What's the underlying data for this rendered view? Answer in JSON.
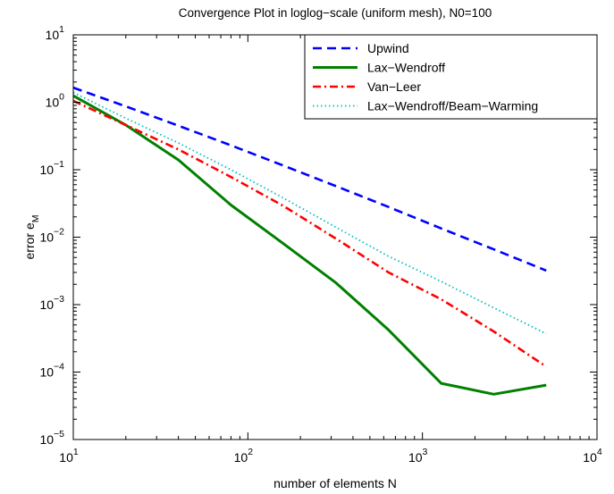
{
  "chart_data": {
    "type": "line",
    "title": "Convergence Plot in loglog−scale (uniform mesh), N0=100",
    "xlabel": "number of elements N",
    "ylabel_main": "error e",
    "ylabel_sub": "M",
    "xscale": "log",
    "yscale": "log",
    "xlim": [
      10,
      10000
    ],
    "ylim": [
      1e-05,
      10
    ],
    "grid": false,
    "legend_position": "top-right",
    "x_ticks": [
      {
        "value": 10,
        "base": "10",
        "exp": "1"
      },
      {
        "value": 100,
        "base": "10",
        "exp": "2"
      },
      {
        "value": 1000,
        "base": "10",
        "exp": "3"
      },
      {
        "value": 10000,
        "base": "10",
        "exp": "4"
      }
    ],
    "y_ticks": [
      {
        "value": 1e-05,
        "base": "10",
        "exp": "−5"
      },
      {
        "value": 0.0001,
        "base": "10",
        "exp": "−4"
      },
      {
        "value": 0.001,
        "base": "10",
        "exp": "−3"
      },
      {
        "value": 0.01,
        "base": "10",
        "exp": "−2"
      },
      {
        "value": 0.1,
        "base": "10",
        "exp": "−1"
      },
      {
        "value": 1,
        "base": "10",
        "exp": "0"
      },
      {
        "value": 10,
        "base": "10",
        "exp": "1"
      }
    ],
    "series": [
      {
        "name": "Upwind",
        "color": "#0000ff",
        "style": "dashed",
        "x": [
          10,
          20,
          40,
          80,
          160,
          320,
          640,
          1280,
          2560,
          5120
        ],
        "y": [
          1.65,
          0.87,
          0.45,
          0.23,
          0.115,
          0.057,
          0.028,
          0.0135,
          0.0066,
          0.0032
        ]
      },
      {
        "name": "Lax−Wendroff",
        "color": "#008000",
        "style": "solid",
        "x": [
          10,
          20,
          40,
          80,
          160,
          320,
          640,
          1280,
          2560,
          5120
        ],
        "y": [
          1.25,
          0.46,
          0.14,
          0.03,
          0.008,
          0.0021,
          0.00042,
          6.8e-05,
          4.7e-05,
          6.4e-05
        ]
      },
      {
        "name": "Van−Leer",
        "color": "#ff0000",
        "style": "dashdot",
        "x": [
          10,
          20,
          40,
          80,
          160,
          320,
          640,
          1280,
          2560,
          5120
        ],
        "y": [
          1.05,
          0.46,
          0.2,
          0.078,
          0.029,
          0.0095,
          0.003,
          0.0012,
          0.0004,
          0.00012
        ]
      },
      {
        "name": "Lax−Wendroff/Beam−Warming",
        "color": "#00bfbf",
        "style": "dotted",
        "x": [
          10,
          20,
          40,
          80,
          160,
          320,
          640,
          1280,
          2560,
          5120
        ],
        "y": [
          1.4,
          0.58,
          0.25,
          0.1,
          0.038,
          0.014,
          0.0052,
          0.0022,
          0.0009,
          0.00037
        ]
      }
    ]
  }
}
